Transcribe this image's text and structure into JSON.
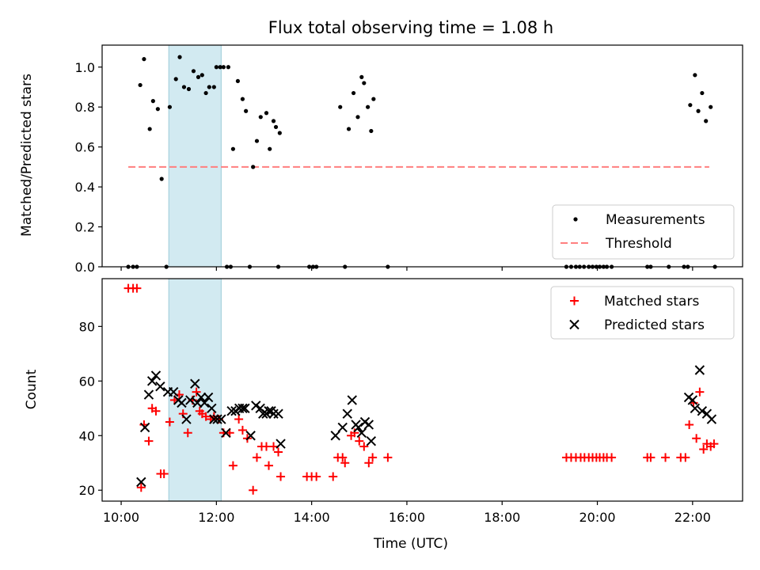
{
  "chart_data": [
    {
      "type": "scatter",
      "title": "Flux total observing time = 1.08 h",
      "xlabel": "",
      "ylabel": "Matched/Predicted stars",
      "xlim": [
        9.6,
        23.05
      ],
      "ylim": [
        0,
        1.11
      ],
      "yticks": [
        0.0,
        0.2,
        0.4,
        0.6,
        0.8,
        1.0
      ],
      "yticklabels": [
        "0.0",
        "0.2",
        "0.4",
        "0.6",
        "0.8",
        "1.0"
      ],
      "highlight_span": [
        11.0,
        12.1
      ],
      "threshold": {
        "name": "Threshold",
        "y": 0.5,
        "x_range": [
          10.15,
          22.35
        ],
        "color": "#ff7f7f"
      },
      "legend": {
        "position": "lower-right",
        "entries": [
          "Measurements",
          "Threshold"
        ]
      },
      "series": [
        {
          "name": "Measurements",
          "marker": "dot",
          "color": "#000000",
          "points": [
            [
              10.15,
              0
            ],
            [
              10.25,
              0
            ],
            [
              10.33,
              0
            ],
            [
              10.4,
              0.91
            ],
            [
              10.48,
              1.04
            ],
            [
              10.6,
              0.69
            ],
            [
              10.67,
              0.83
            ],
            [
              10.77,
              0.79
            ],
            [
              10.85,
              0.44
            ],
            [
              10.95,
              0
            ],
            [
              11.02,
              0.8
            ],
            [
              11.15,
              0.94
            ],
            [
              11.23,
              1.05
            ],
            [
              11.32,
              0.9
            ],
            [
              11.42,
              0.89
            ],
            [
              11.52,
              0.98
            ],
            [
              11.62,
              0.95
            ],
            [
              11.7,
              0.96
            ],
            [
              11.78,
              0.87
            ],
            [
              11.85,
              0.9
            ],
            [
              11.95,
              0.9
            ],
            [
              12.0,
              1.0
            ],
            [
              12.08,
              1.0
            ],
            [
              12.15,
              1.0
            ],
            [
              12.25,
              1.0
            ],
            [
              12.22,
              0
            ],
            [
              12.3,
              0
            ],
            [
              12.35,
              0.59
            ],
            [
              12.45,
              0.93
            ],
            [
              12.55,
              0.84
            ],
            [
              12.62,
              0.78
            ],
            [
              12.7,
              0
            ],
            [
              12.77,
              0.5
            ],
            [
              12.85,
              0.63
            ],
            [
              12.93,
              0.75
            ],
            [
              13.05,
              0.77
            ],
            [
              13.12,
              0.59
            ],
            [
              13.2,
              0.73
            ],
            [
              13.25,
              0.7
            ],
            [
              13.33,
              0.67
            ],
            [
              13.3,
              0
            ],
            [
              13.95,
              0
            ],
            [
              14.03,
              0
            ],
            [
              14.1,
              0
            ],
            [
              14.6,
              0.8
            ],
            [
              14.7,
              0
            ],
            [
              14.78,
              0.69
            ],
            [
              14.88,
              0.87
            ],
            [
              14.97,
              0.75
            ],
            [
              15.05,
              0.95
            ],
            [
              15.1,
              0.92
            ],
            [
              15.18,
              0.8
            ],
            [
              15.25,
              0.68
            ],
            [
              15.3,
              0.84
            ],
            [
              15.6,
              0
            ],
            [
              19.35,
              0
            ],
            [
              19.45,
              0
            ],
            [
              19.55,
              0
            ],
            [
              19.63,
              0
            ],
            [
              19.72,
              0
            ],
            [
              19.82,
              0
            ],
            [
              19.9,
              0
            ],
            [
              19.98,
              0
            ],
            [
              20.05,
              0
            ],
            [
              20.13,
              0
            ],
            [
              20.2,
              0
            ],
            [
              20.3,
              0
            ],
            [
              21.05,
              0
            ],
            [
              21.12,
              0
            ],
            [
              21.5,
              0
            ],
            [
              21.82,
              0
            ],
            [
              21.9,
              0
            ],
            [
              21.95,
              0.81
            ],
            [
              22.05,
              0.96
            ],
            [
              22.12,
              0.78
            ],
            [
              22.2,
              0.87
            ],
            [
              22.28,
              0.73
            ],
            [
              22.38,
              0.8
            ],
            [
              22.47,
              0
            ]
          ]
        }
      ]
    },
    {
      "type": "scatter",
      "title": "",
      "xlabel": "Time (UTC)",
      "ylabel": "Count",
      "xlim": [
        9.6,
        23.05
      ],
      "ylim": [
        16,
        97.5
      ],
      "yticks": [
        20,
        40,
        60,
        80
      ],
      "yticklabels": [
        "20",
        "40",
        "60",
        "80"
      ],
      "xticks": [
        10,
        12,
        14,
        16,
        18,
        20,
        22
      ],
      "xticklabels": [
        "10:00",
        "12:00",
        "14:00",
        "16:00",
        "18:00",
        "20:00",
        "22:00"
      ],
      "highlight_span": [
        11.0,
        12.1
      ],
      "legend": {
        "position": "top-right",
        "entries": [
          "Matched stars",
          "Predicted stars"
        ]
      },
      "series": [
        {
          "name": "Matched stars",
          "marker": "plus",
          "color": "#ff0000",
          "points": [
            [
              10.15,
              94
            ],
            [
              10.25,
              94
            ],
            [
              10.33,
              94
            ],
            [
              10.42,
              21
            ],
            [
              10.48,
              44
            ],
            [
              10.58,
              38
            ],
            [
              10.65,
              50
            ],
            [
              10.73,
              49
            ],
            [
              10.83,
              26
            ],
            [
              10.9,
              26
            ],
            [
              11.02,
              45
            ],
            [
              11.12,
              53
            ],
            [
              11.22,
              55
            ],
            [
              11.3,
              48
            ],
            [
              11.4,
              41
            ],
            [
              11.5,
              53
            ],
            [
              11.58,
              56
            ],
            [
              11.65,
              49
            ],
            [
              11.7,
              48
            ],
            [
              11.78,
              47
            ],
            [
              11.88,
              46
            ],
            [
              11.95,
              47
            ],
            [
              12.05,
              46
            ],
            [
              12.15,
              41
            ],
            [
              12.28,
              41
            ],
            [
              12.35,
              29
            ],
            [
              12.47,
              46
            ],
            [
              12.55,
              42
            ],
            [
              12.65,
              39
            ],
            [
              12.77,
              20
            ],
            [
              12.85,
              32
            ],
            [
              12.95,
              36
            ],
            [
              13.05,
              36
            ],
            [
              13.1,
              29
            ],
            [
              13.2,
              36
            ],
            [
              13.3,
              34
            ],
            [
              13.35,
              25
            ],
            [
              13.9,
              25
            ],
            [
              14.0,
              25
            ],
            [
              14.1,
              25
            ],
            [
              14.45,
              25
            ],
            [
              14.55,
              32
            ],
            [
              14.65,
              32
            ],
            [
              14.7,
              30
            ],
            [
              14.83,
              40
            ],
            [
              14.9,
              41
            ],
            [
              15.0,
              38
            ],
            [
              15.1,
              36
            ],
            [
              15.2,
              30
            ],
            [
              15.28,
              32
            ],
            [
              15.6,
              32
            ],
            [
              19.35,
              32
            ],
            [
              19.45,
              32
            ],
            [
              19.55,
              32
            ],
            [
              19.65,
              32
            ],
            [
              19.73,
              32
            ],
            [
              19.82,
              32
            ],
            [
              19.9,
              32
            ],
            [
              19.98,
              32
            ],
            [
              20.05,
              32
            ],
            [
              20.13,
              32
            ],
            [
              20.2,
              32
            ],
            [
              20.3,
              32
            ],
            [
              21.05,
              32
            ],
            [
              21.12,
              32
            ],
            [
              21.43,
              32
            ],
            [
              21.75,
              32
            ],
            [
              21.85,
              32
            ],
            [
              21.93,
              44
            ],
            [
              22.02,
              52
            ],
            [
              22.08,
              39
            ],
            [
              22.15,
              56
            ],
            [
              22.23,
              35
            ],
            [
              22.3,
              37
            ],
            [
              22.38,
              36
            ],
            [
              22.45,
              37
            ]
          ]
        },
        {
          "name": "Predicted stars",
          "marker": "x",
          "color": "#000000",
          "points": [
            [
              10.42,
              23
            ],
            [
              10.5,
              43
            ],
            [
              10.58,
              55
            ],
            [
              10.65,
              60
            ],
            [
              10.73,
              62
            ],
            [
              10.82,
              58
            ],
            [
              10.98,
              56
            ],
            [
              11.1,
              56
            ],
            [
              11.2,
              53
            ],
            [
              11.27,
              52
            ],
            [
              11.37,
              46
            ],
            [
              11.45,
              53
            ],
            [
              11.55,
              59
            ],
            [
              11.6,
              52
            ],
            [
              11.68,
              54
            ],
            [
              11.75,
              52
            ],
            [
              11.83,
              54
            ],
            [
              11.9,
              50
            ],
            [
              11.95,
              46
            ],
            [
              12.02,
              46
            ],
            [
              12.1,
              46
            ],
            [
              12.2,
              41
            ],
            [
              12.32,
              49
            ],
            [
              12.4,
              49
            ],
            [
              12.48,
              50
            ],
            [
              12.55,
              50
            ],
            [
              12.6,
              50
            ],
            [
              12.72,
              40
            ],
            [
              12.83,
              51
            ],
            [
              12.92,
              50
            ],
            [
              12.98,
              48
            ],
            [
              13.05,
              48
            ],
            [
              13.1,
              49
            ],
            [
              13.15,
              49
            ],
            [
              13.2,
              48
            ],
            [
              13.3,
              48
            ],
            [
              13.35,
              37
            ],
            [
              14.5,
              40
            ],
            [
              14.65,
              43
            ],
            [
              14.75,
              48
            ],
            [
              14.85,
              53
            ],
            [
              14.93,
              44
            ],
            [
              14.98,
              43
            ],
            [
              15.05,
              41
            ],
            [
              15.12,
              45
            ],
            [
              15.2,
              44
            ],
            [
              15.25,
              38
            ],
            [
              21.92,
              54
            ],
            [
              22.0,
              53
            ],
            [
              22.05,
              50
            ],
            [
              22.15,
              64
            ],
            [
              22.2,
              49
            ],
            [
              22.3,
              48
            ],
            [
              22.4,
              46
            ]
          ]
        }
      ]
    }
  ]
}
